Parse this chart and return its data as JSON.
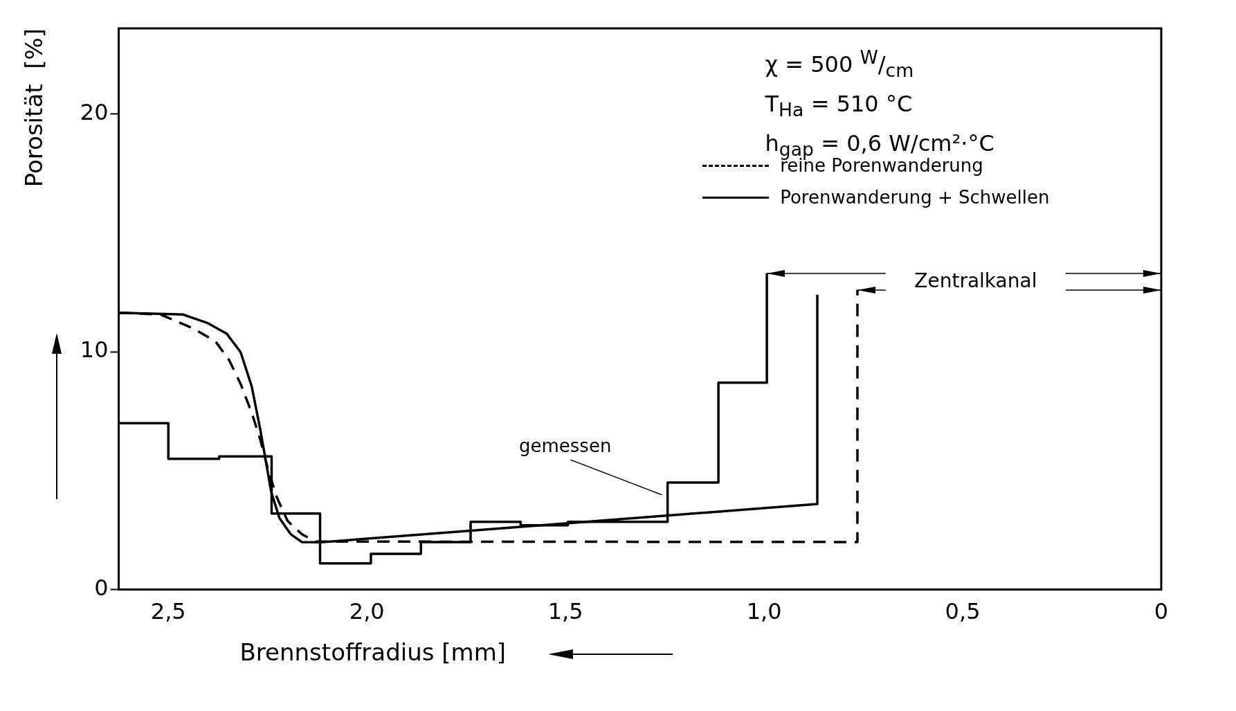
{
  "chart_data": {
    "type": "line",
    "xlabel": "Brennstoffradius [mm]",
    "ylabel": "Porosität  [%]",
    "xlim": [
      2.625,
      0
    ],
    "xticks": [
      {
        "value": 2.5,
        "label": "2,5"
      },
      {
        "value": 2,
        "label": "2,0"
      },
      {
        "value": 1.5,
        "label": "1,5"
      },
      {
        "value": 1,
        "label": "1,0"
      },
      {
        "value": 0.5,
        "label": "0,5"
      },
      0
    ],
    "ylim": [
      0,
      23.6
    ],
    "yticks": [
      0,
      10,
      20
    ],
    "grid": false,
    "legend": "top right",
    "marker": "none",
    "annotations": [
      "χ = 500 $^{W}$/$_{cm}$",
      "T$_{Ha}$ = 510 °C",
      "h$_{gap}$ = 0,6 W/cm²·°C",
      "gemessen",
      "Zentralkanal"
    ],
    "series": [
      {
        "type": "step",
        "color": "#000000",
        "line_style": "solid",
        "x": [
          2.625,
          2.5,
          2.372,
          2.24,
          2.118,
          1.99,
          1.864,
          1.739,
          1.613,
          1.494,
          1.243,
          1.115,
          0.993
        ],
        "values": [
          7.0,
          5.5,
          5.6,
          3.2,
          1.1,
          1.5,
          2.0,
          2.85,
          2.7,
          2.85,
          4.5,
          8.7,
          13.3
        ]
      },
      {
        "name": "reine Porenwanderung",
        "color": "#000000",
        "line_style": "dashed",
        "x": [
          2.625,
          2.52,
          2.437,
          2.381,
          2.347,
          2.318,
          2.29,
          2.269,
          2.248,
          2.227,
          2.2,
          2.164,
          2.13,
          0.765,
          0.765
        ],
        "values": [
          11.64,
          11.57,
          10.98,
          10.43,
          9.65,
          8.65,
          7.43,
          6.33,
          4.99,
          3.89,
          2.89,
          2.33,
          2.02,
          2.0,
          12.6
        ]
      },
      {
        "name": "Porenwanderung + Schwellen",
        "color": "#000000",
        "line_style": "solid",
        "x": [
          2.625,
          2.464,
          2.4,
          2.353,
          2.318,
          2.29,
          2.269,
          2.255,
          2.241,
          2.22,
          2.192,
          2.164,
          2.116,
          0.866,
          0.866
        ],
        "values": [
          11.64,
          11.57,
          11.2,
          10.76,
          9.98,
          8.54,
          6.77,
          5.45,
          4.1,
          3.0,
          2.33,
          2.0,
          1.99,
          3.6,
          12.4
        ]
      }
    ]
  }
}
